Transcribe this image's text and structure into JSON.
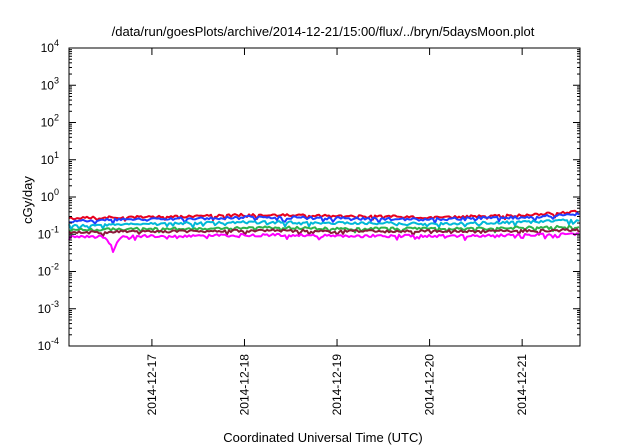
{
  "chart_data": {
    "type": "line",
    "title": "/data/run/goesPlots/archive/2014-12-21/15:00/flux/../bryn/5daysMoon.plot",
    "xlabel": "Coordinated Universal Time (UTC)",
    "ylabel": "cGy/day",
    "yscale": "log",
    "ylim": [
      0.0001,
      10000
    ],
    "xlim": [
      "2014-12-16T02:30",
      "2014-12-21T15:00"
    ],
    "y_ticks": [
      {
        "value": 0.0001,
        "base": "10",
        "exp": "-4"
      },
      {
        "value": 0.001,
        "base": "10",
        "exp": "-3"
      },
      {
        "value": 0.01,
        "base": "10",
        "exp": "-2"
      },
      {
        "value": 0.1,
        "base": "10",
        "exp": "-1"
      },
      {
        "value": 1,
        "base": "10",
        "exp": "0"
      },
      {
        "value": 10,
        "base": "10",
        "exp": "1"
      },
      {
        "value": 100,
        "base": "10",
        "exp": "2"
      },
      {
        "value": 1000,
        "base": "10",
        "exp": "3"
      },
      {
        "value": 10000,
        "base": "10",
        "exp": "4"
      }
    ],
    "x_ticks": [
      {
        "value": "2014-12-17",
        "label": "2014-12-17"
      },
      {
        "value": "2014-12-18",
        "label": "2014-12-18"
      },
      {
        "value": "2014-12-19",
        "label": "2014-12-19"
      },
      {
        "value": "2014-12-20",
        "label": "2014-12-20"
      },
      {
        "value": "2014-12-21",
        "label": "2014-12-21"
      }
    ],
    "grid": false,
    "legend": "none",
    "series": [
      {
        "color": "#e8001c",
        "x": [
          "2014-12-16T02:30",
          "2014-12-16T12:00",
          "2014-12-17T00:00",
          "2014-12-17T12:00",
          "2014-12-18T00:00",
          "2014-12-18T12:00",
          "2014-12-19T00:00",
          "2014-12-19T12:00",
          "2014-12-20T00:00",
          "2014-12-20T12:00",
          "2014-12-21T00:00",
          "2014-12-21T15:00"
        ],
        "values": [
          0.27,
          0.28,
          0.29,
          0.3,
          0.33,
          0.32,
          0.31,
          0.3,
          0.28,
          0.3,
          0.32,
          0.4
        ]
      },
      {
        "color": "#1f3fff",
        "x": [
          "2014-12-16T02:30",
          "2014-12-16T12:00",
          "2014-12-17T00:00",
          "2014-12-17T12:00",
          "2014-12-18T00:00",
          "2014-12-18T12:00",
          "2014-12-19T00:00",
          "2014-12-19T12:00",
          "2014-12-20T00:00",
          "2014-12-20T12:00",
          "2014-12-21T00:00",
          "2014-12-21T15:00"
        ],
        "values": [
          0.22,
          0.24,
          0.25,
          0.26,
          0.29,
          0.28,
          0.27,
          0.26,
          0.25,
          0.27,
          0.28,
          0.35
        ]
      },
      {
        "color": "#00b8d8",
        "x": [
          "2014-12-16T02:30",
          "2014-12-16T12:00",
          "2014-12-17T00:00",
          "2014-12-17T12:00",
          "2014-12-18T00:00",
          "2014-12-18T12:00",
          "2014-12-19T00:00",
          "2014-12-19T12:00",
          "2014-12-20T00:00",
          "2014-12-20T12:00",
          "2014-12-21T00:00",
          "2014-12-21T15:00"
        ],
        "values": [
          0.17,
          0.18,
          0.19,
          0.2,
          0.21,
          0.21,
          0.2,
          0.2,
          0.19,
          0.2,
          0.21,
          0.24
        ]
      },
      {
        "color": "#2db34a",
        "x": [
          "2014-12-16T02:30",
          "2014-12-16T12:00",
          "2014-12-17T00:00",
          "2014-12-17T12:00",
          "2014-12-18T00:00",
          "2014-12-18T12:00",
          "2014-12-19T00:00",
          "2014-12-19T12:00",
          "2014-12-20T00:00",
          "2014-12-20T12:00",
          "2014-12-21T00:00",
          "2014-12-21T15:00"
        ],
        "values": [
          0.13,
          0.135,
          0.14,
          0.14,
          0.15,
          0.15,
          0.14,
          0.14,
          0.14,
          0.14,
          0.15,
          0.16
        ]
      },
      {
        "color": "#8b1a3a",
        "x": [
          "2014-12-16T02:30",
          "2014-12-16T12:00",
          "2014-12-17T00:00",
          "2014-12-17T12:00",
          "2014-12-18T00:00",
          "2014-12-18T12:00",
          "2014-12-19T00:00",
          "2014-12-19T12:00",
          "2014-12-20T00:00",
          "2014-12-20T12:00",
          "2014-12-21T00:00",
          "2014-12-21T15:00"
        ],
        "values": [
          0.11,
          0.115,
          0.12,
          0.12,
          0.125,
          0.125,
          0.12,
          0.12,
          0.12,
          0.12,
          0.125,
          0.13
        ]
      },
      {
        "color": "#ff00ff",
        "x": [
          "2014-12-16T02:30",
          "2014-12-16T12:00",
          "2014-12-16T14:00",
          "2014-12-16T16:00",
          "2014-12-17T00:00",
          "2014-12-17T12:00",
          "2014-12-18T00:00",
          "2014-12-18T12:00",
          "2014-12-19T00:00",
          "2014-12-19T12:00",
          "2014-12-20T00:00",
          "2014-12-20T12:00",
          "2014-12-21T00:00",
          "2014-12-21T15:00"
        ],
        "values": [
          0.09,
          0.085,
          0.04,
          0.085,
          0.09,
          0.09,
          0.095,
          0.095,
          0.09,
          0.09,
          0.09,
          0.09,
          0.095,
          0.1
        ]
      }
    ]
  }
}
